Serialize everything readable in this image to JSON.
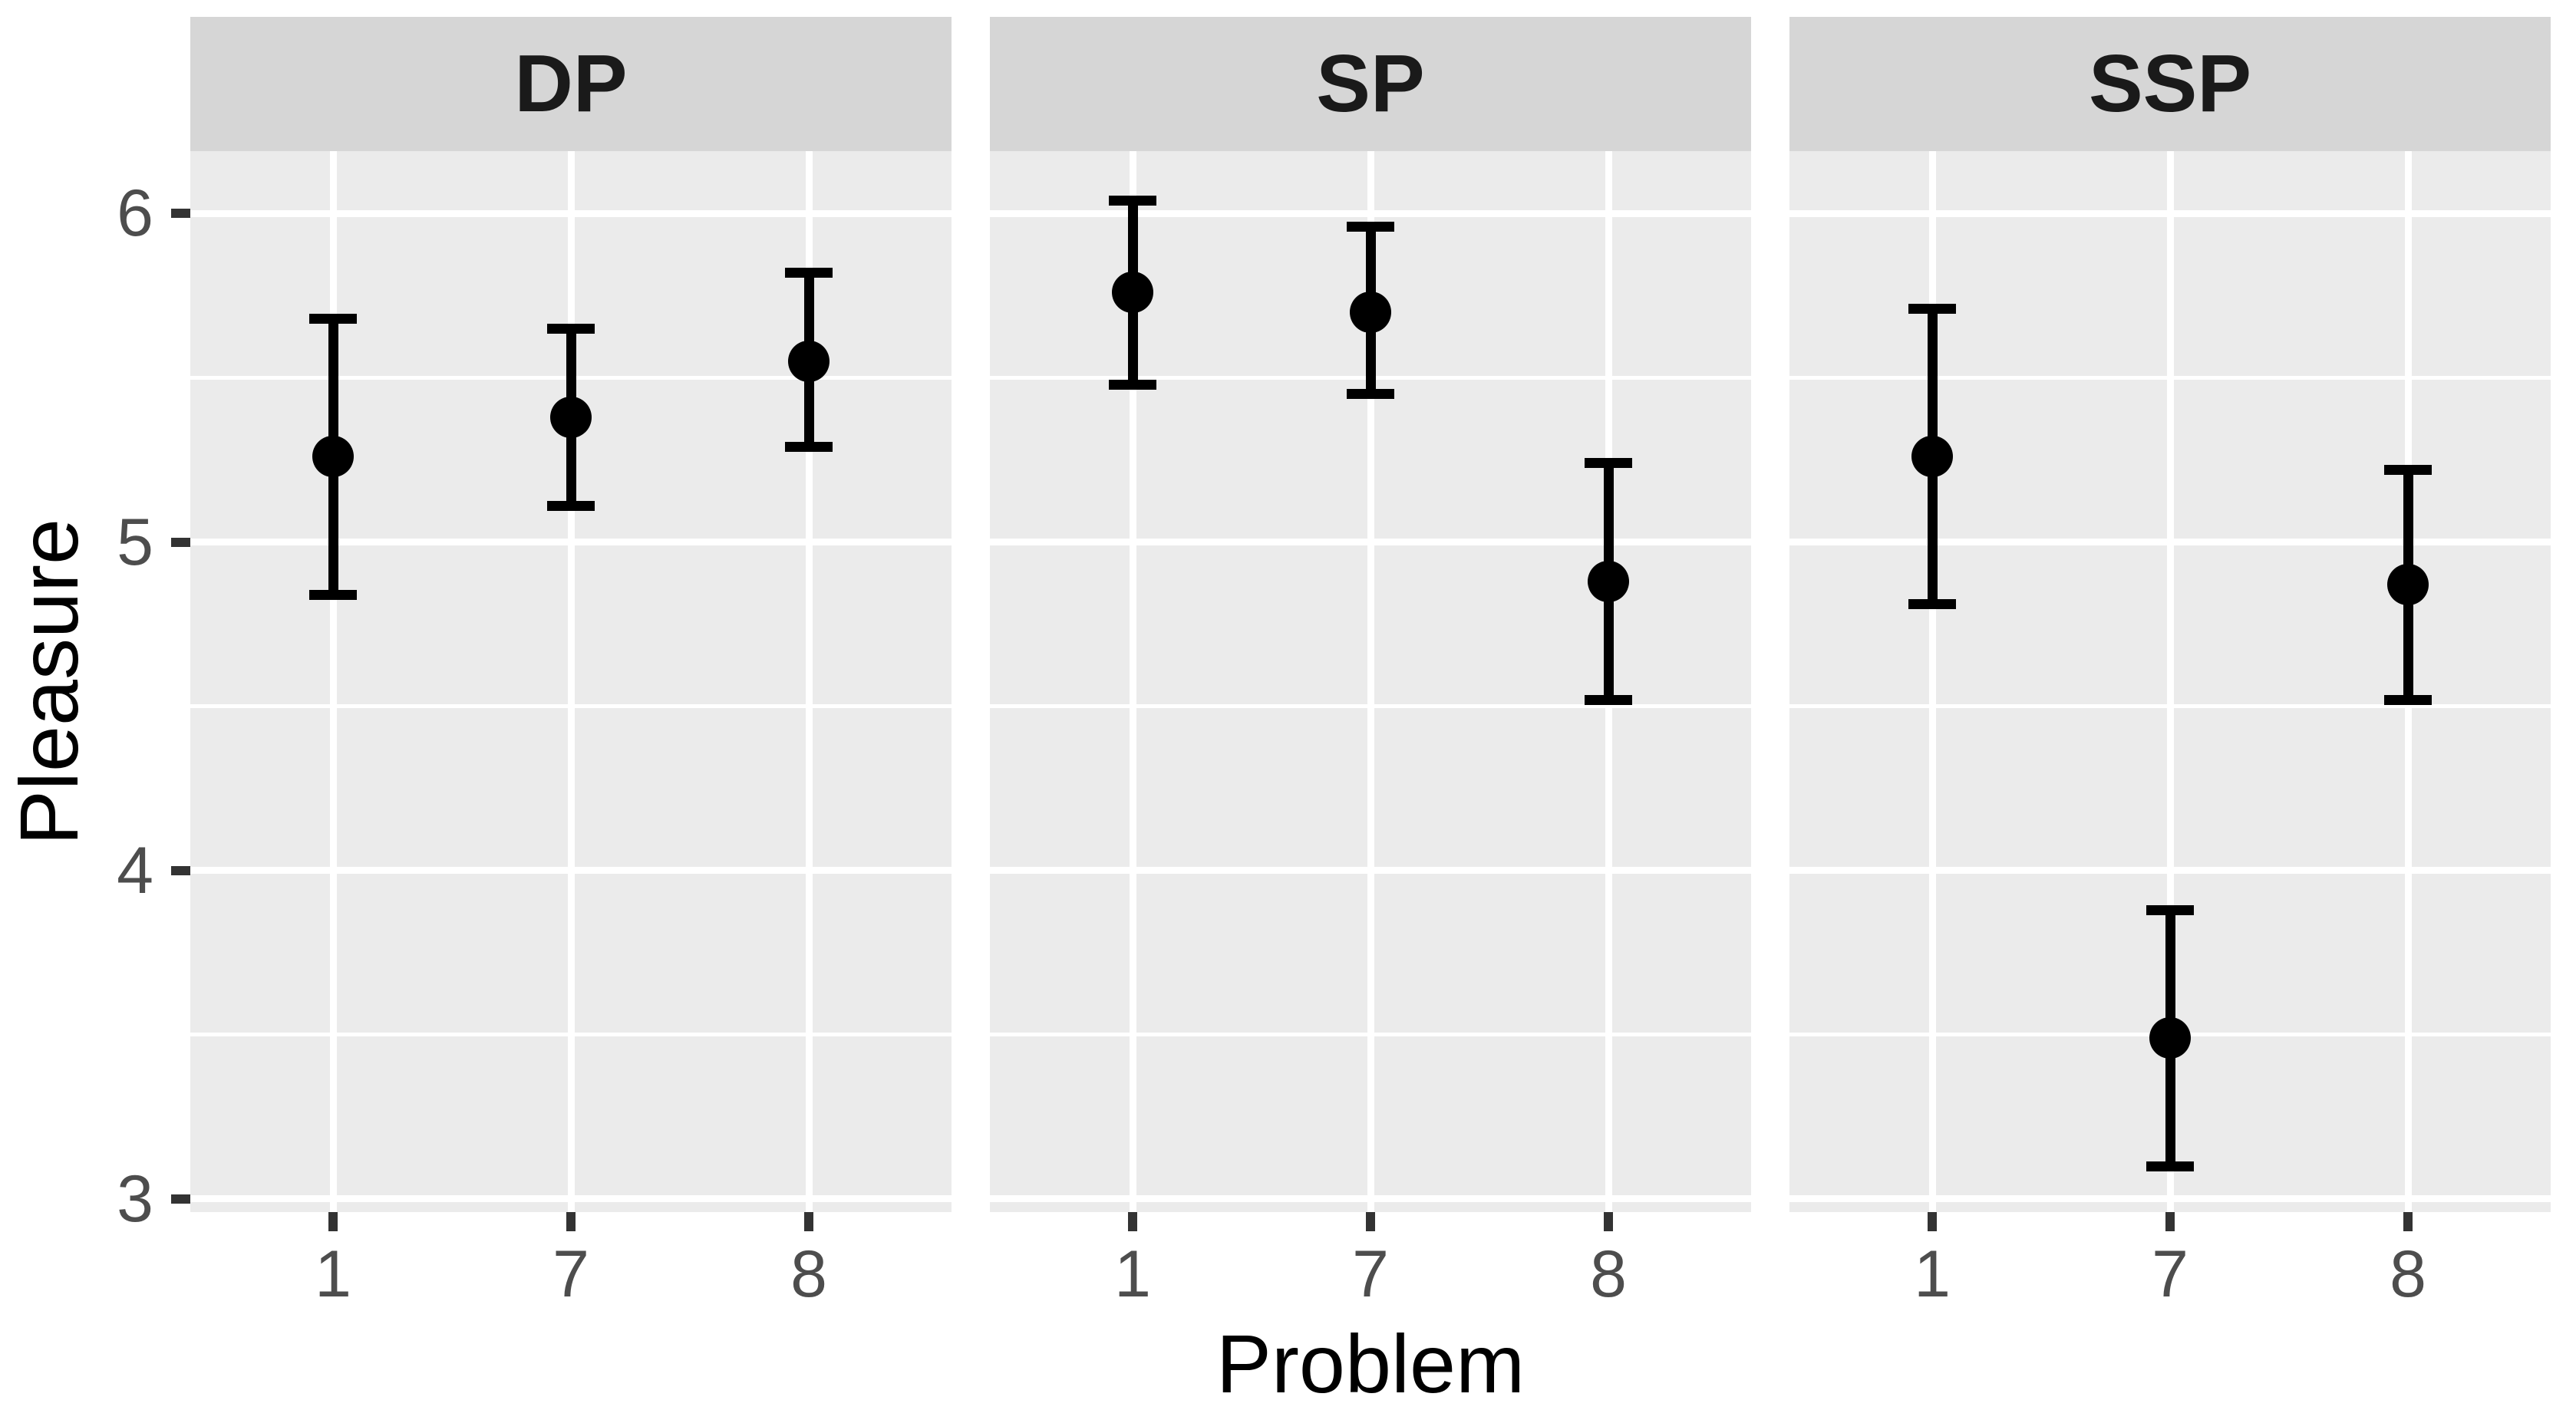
{
  "chart_data": {
    "type": "scatter",
    "subtype": "pointrange-errorbar",
    "title": "",
    "xlabel": "Problem",
    "ylabel": "Pleasure",
    "x_categories": [
      "1",
      "7",
      "8"
    ],
    "y_tick_values": [
      6,
      5,
      4,
      3
    ],
    "ylim": [
      2.96,
      6.19
    ],
    "grid": "on",
    "legend": "none",
    "facets": [
      {
        "label": "DP",
        "series": [
          {
            "x": "1",
            "mean": 5.26,
            "ci_low": 4.84,
            "ci_high": 5.68
          },
          {
            "x": "7",
            "mean": 5.38,
            "ci_low": 5.11,
            "ci_high": 5.65
          },
          {
            "x": "8",
            "mean": 5.55,
            "ci_low": 5.29,
            "ci_high": 5.82
          }
        ]
      },
      {
        "label": "SP",
        "series": [
          {
            "x": "1",
            "mean": 5.76,
            "ci_low": 5.48,
            "ci_high": 6.04
          },
          {
            "x": "7",
            "mean": 5.7,
            "ci_low": 5.45,
            "ci_high": 5.96
          },
          {
            "x": "8",
            "mean": 4.88,
            "ci_low": 4.52,
            "ci_high": 5.24
          }
        ]
      },
      {
        "label": "SSP",
        "series": [
          {
            "x": "1",
            "mean": 5.26,
            "ci_low": 4.81,
            "ci_high": 5.71
          },
          {
            "x": "7",
            "mean": 3.49,
            "ci_low": 3.1,
            "ci_high": 3.88
          },
          {
            "x": "8",
            "mean": 4.87,
            "ci_low": 4.52,
            "ci_high": 5.22
          }
        ]
      }
    ]
  },
  "style": {
    "background": "#ffffff",
    "panel_background": "#ebebeb",
    "strip_background": "#d6d6d6",
    "strip_text_color": "#1a1a1a",
    "gridline_color": "#ffffff",
    "tick_label_color": "#4d4d4d",
    "tick_mark_color": "#333333",
    "data_color": "#000000",
    "axis_title_color": "#000000"
  }
}
